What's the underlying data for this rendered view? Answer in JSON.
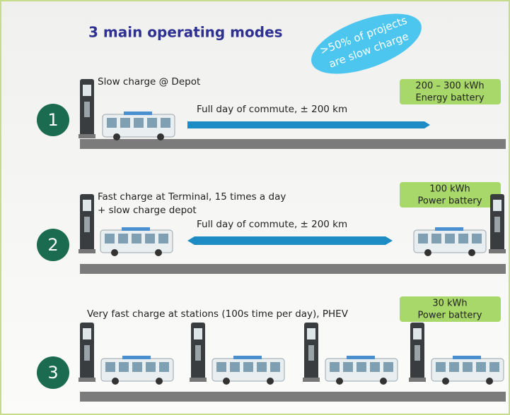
{
  "title": "3 main operating modes",
  "callout": [
    ">50% of projects",
    "are slow charge"
  ],
  "modes": [
    {
      "number": "1",
      "description": [
        "Slow charge @ Depot"
      ],
      "commute": "Full day of commute, ± 200 km",
      "battery": [
        "200 – 300 kWh",
        "Energy battery"
      ]
    },
    {
      "number": "2",
      "description": [
        "Fast charge at Terminal, 15 times a day",
        "+ slow charge depot"
      ],
      "commute": "Full day of commute, ± 200 km",
      "battery": [
        "100 kWh",
        "Power battery"
      ]
    },
    {
      "number": "3",
      "description": [
        "Very fast charge at stations (100s time per day), PHEV"
      ],
      "battery": [
        "30 kWh",
        "Power battery"
      ]
    }
  ]
}
